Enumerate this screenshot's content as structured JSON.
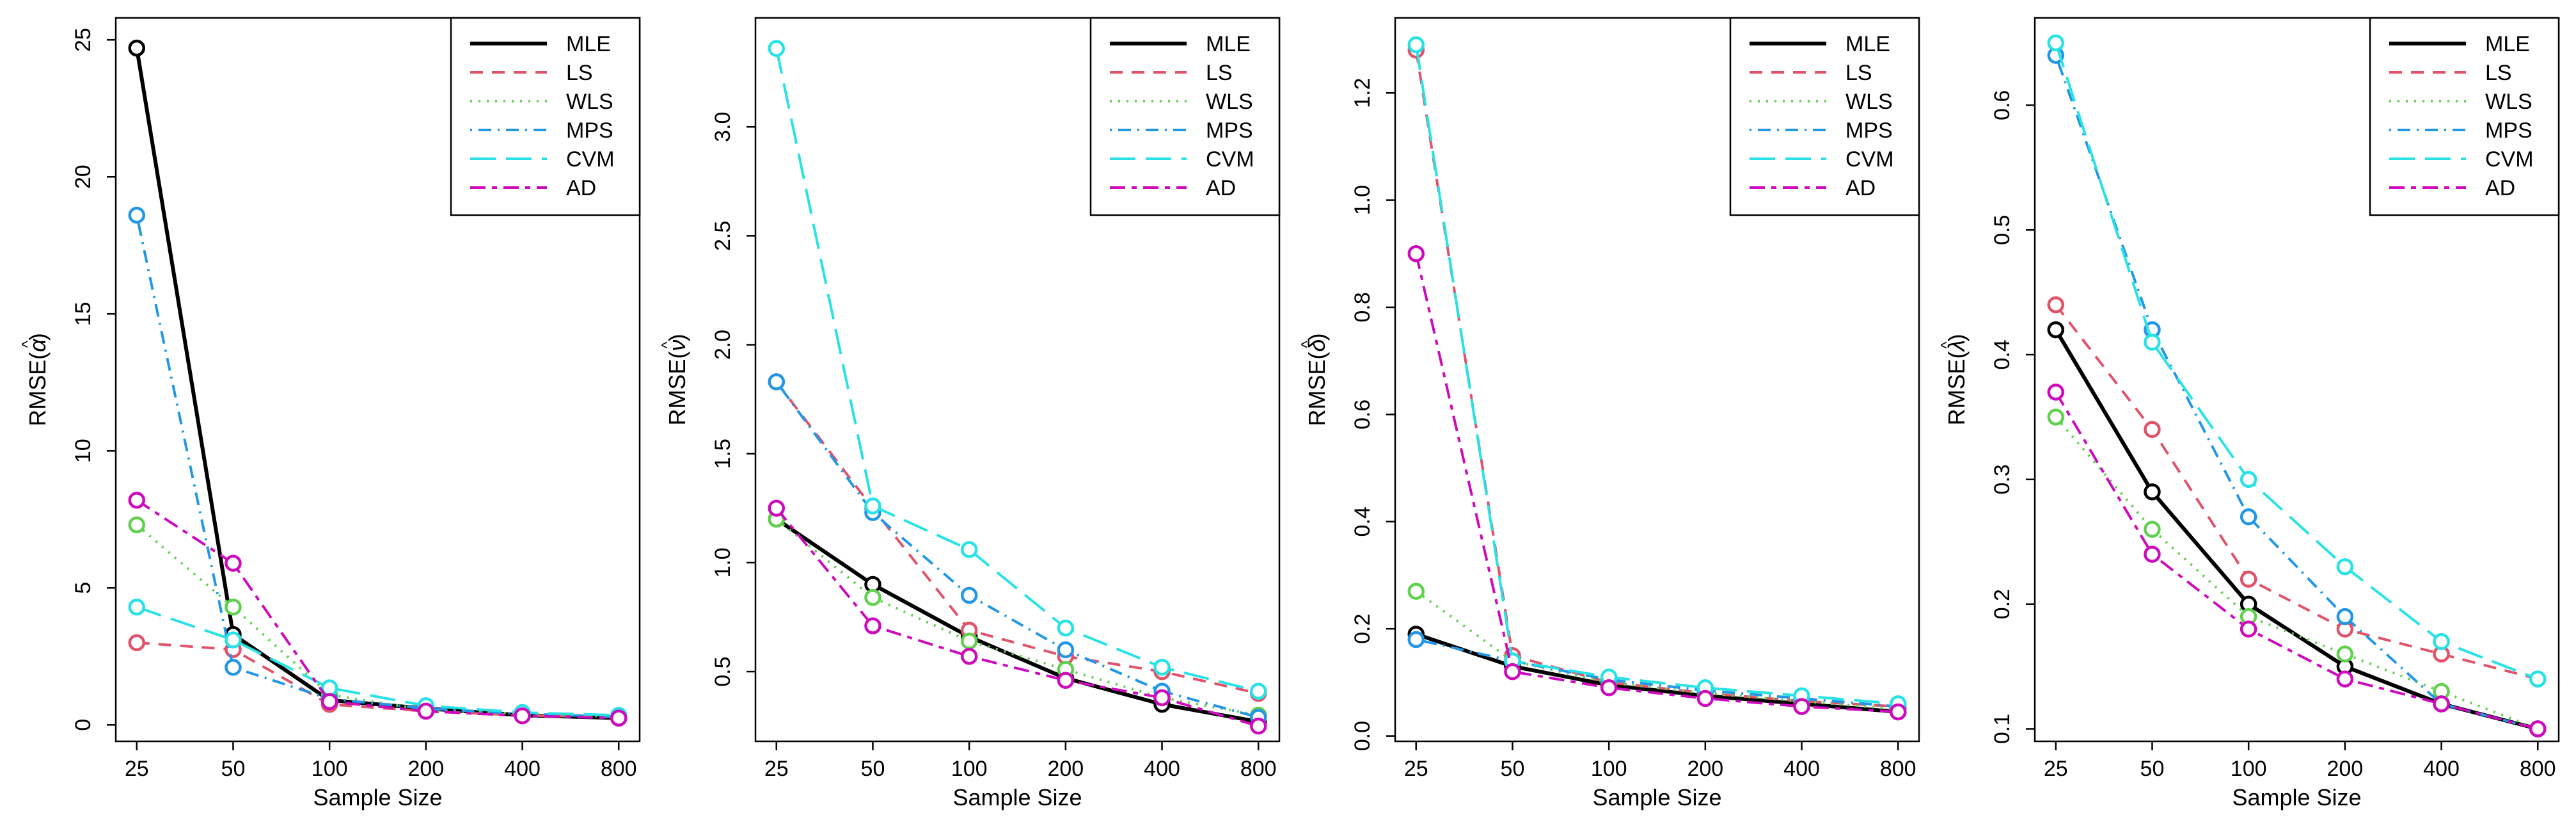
{
  "series_styles": [
    {
      "name": "MLE",
      "color": "#000000",
      "dash": "solid",
      "width": "bold"
    },
    {
      "name": "LS",
      "color": "#DF536B",
      "dash": "dashed",
      "width": "normal"
    },
    {
      "name": "WLS",
      "color": "#61D04F",
      "dash": "dotted",
      "width": "normal"
    },
    {
      "name": "MPS",
      "color": "#2297E6",
      "dash": "dotdash",
      "width": "normal"
    },
    {
      "name": "CVM",
      "color": "#28E2E5",
      "dash": "longdash",
      "width": "normal"
    },
    {
      "name": "AD",
      "color": "#CD0BBC",
      "dash": "twodash",
      "width": "normal"
    }
  ],
  "chart_data": [
    {
      "type": "line",
      "title": "",
      "xlabel": "Sample Size",
      "ylabel_base": "RMSE",
      "ylabel_symbol": "α",
      "categories": [
        "25",
        "50",
        "100",
        "200",
        "400",
        "800"
      ],
      "ylim": [
        -0.6,
        25.8
      ],
      "yticks": [
        0,
        5,
        10,
        15,
        20,
        25
      ],
      "ytick_labels": [
        "0",
        "5",
        "10",
        "15",
        "20",
        "25"
      ],
      "legend_position": "top-right",
      "grid": false,
      "series": [
        {
          "name": "MLE",
          "values": [
            24.7,
            3.3,
            0.9,
            0.6,
            0.35,
            0.25
          ]
        },
        {
          "name": "LS",
          "values": [
            3.0,
            2.75,
            0.75,
            0.5,
            0.35,
            0.28
          ]
        },
        {
          "name": "WLS",
          "values": [
            7.3,
            4.3,
            1.1,
            0.55,
            0.4,
            0.3
          ]
        },
        {
          "name": "MPS",
          "values": [
            18.6,
            2.1,
            0.95,
            0.6,
            0.4,
            0.3
          ]
        },
        {
          "name": "CVM",
          "values": [
            4.3,
            3.1,
            1.35,
            0.7,
            0.45,
            0.35
          ]
        },
        {
          "name": "AD",
          "values": [
            8.2,
            5.9,
            0.85,
            0.5,
            0.33,
            0.25
          ]
        }
      ]
    },
    {
      "type": "line",
      "title": "",
      "xlabel": "Sample Size",
      "ylabel_base": "RMSE",
      "ylabel_symbol": "ν",
      "categories": [
        "25",
        "50",
        "100",
        "200",
        "400",
        "800"
      ],
      "ylim": [
        0.18,
        3.5
      ],
      "yticks": [
        0.5,
        1.0,
        1.5,
        2.0,
        2.5,
        3.0
      ],
      "ytick_labels": [
        "0.5",
        "1.0",
        "1.5",
        "2.0",
        "2.5",
        "3.0"
      ],
      "legend_position": "top-right",
      "grid": false,
      "series": [
        {
          "name": "MLE",
          "values": [
            1.2,
            0.9,
            0.66,
            0.47,
            0.35,
            0.27
          ]
        },
        {
          "name": "LS",
          "values": [
            1.83,
            1.25,
            0.69,
            0.57,
            0.5,
            0.4
          ]
        },
        {
          "name": "WLS",
          "values": [
            1.2,
            0.84,
            0.64,
            0.51,
            0.38,
            0.3
          ]
        },
        {
          "name": "MPS",
          "values": [
            1.83,
            1.23,
            0.85,
            0.6,
            0.41,
            0.29
          ]
        },
        {
          "name": "CVM",
          "values": [
            3.36,
            1.26,
            1.06,
            0.7,
            0.52,
            0.41
          ]
        },
        {
          "name": "AD",
          "values": [
            1.25,
            0.71,
            0.57,
            0.46,
            0.38,
            0.25
          ]
        }
      ]
    },
    {
      "type": "line",
      "title": "",
      "xlabel": "Sample Size",
      "ylabel_base": "RMSE",
      "ylabel_symbol": "δ",
      "categories": [
        "25",
        "50",
        "100",
        "200",
        "400",
        "800"
      ],
      "ylim": [
        -0.01,
        1.34
      ],
      "yticks": [
        0.0,
        0.2,
        0.4,
        0.6,
        0.8,
        1.0,
        1.2
      ],
      "ytick_labels": [
        "0.0",
        "0.2",
        "0.4",
        "0.6",
        "0.8",
        "1.0",
        "1.2"
      ],
      "legend_position": "top-right",
      "grid": false,
      "series": [
        {
          "name": "MLE",
          "values": [
            0.19,
            0.13,
            0.095,
            0.075,
            0.06,
            0.045
          ]
        },
        {
          "name": "LS",
          "values": [
            1.28,
            0.15,
            0.1,
            0.08,
            0.065,
            0.055
          ]
        },
        {
          "name": "WLS",
          "values": [
            0.27,
            0.14,
            0.1,
            0.08,
            0.065,
            0.05
          ]
        },
        {
          "name": "MPS",
          "values": [
            0.18,
            0.14,
            0.105,
            0.085,
            0.07,
            0.055
          ]
        },
        {
          "name": "CVM",
          "values": [
            1.29,
            0.14,
            0.11,
            0.09,
            0.075,
            0.06
          ]
        },
        {
          "name": "AD",
          "values": [
            0.9,
            0.12,
            0.09,
            0.07,
            0.055,
            0.045
          ]
        }
      ]
    },
    {
      "type": "line",
      "title": "",
      "xlabel": "Sample Size",
      "ylabel_base": "RMSE",
      "ylabel_symbol": "λ",
      "categories": [
        "25",
        "50",
        "100",
        "200",
        "400",
        "800"
      ],
      "ylim": [
        0.09,
        0.67
      ],
      "yticks": [
        0.1,
        0.2,
        0.3,
        0.4,
        0.5,
        0.6
      ],
      "ytick_labels": [
        "0.1",
        "0.2",
        "0.3",
        "0.4",
        "0.5",
        "0.6"
      ],
      "legend_position": "top-right",
      "grid": false,
      "series": [
        {
          "name": "MLE",
          "values": [
            0.42,
            0.29,
            0.2,
            0.15,
            0.12,
            0.1
          ]
        },
        {
          "name": "LS",
          "values": [
            0.44,
            0.34,
            0.22,
            0.18,
            0.16,
            0.14
          ]
        },
        {
          "name": "WLS",
          "values": [
            0.35,
            0.26,
            0.19,
            0.16,
            0.13,
            0.1
          ]
        },
        {
          "name": "MPS",
          "values": [
            0.64,
            0.42,
            0.27,
            0.19,
            0.12,
            0.1
          ]
        },
        {
          "name": "CVM",
          "values": [
            0.65,
            0.41,
            0.3,
            0.23,
            0.17,
            0.14
          ]
        },
        {
          "name": "AD",
          "values": [
            0.37,
            0.24,
            0.18,
            0.14,
            0.12,
            0.1
          ]
        }
      ]
    }
  ]
}
